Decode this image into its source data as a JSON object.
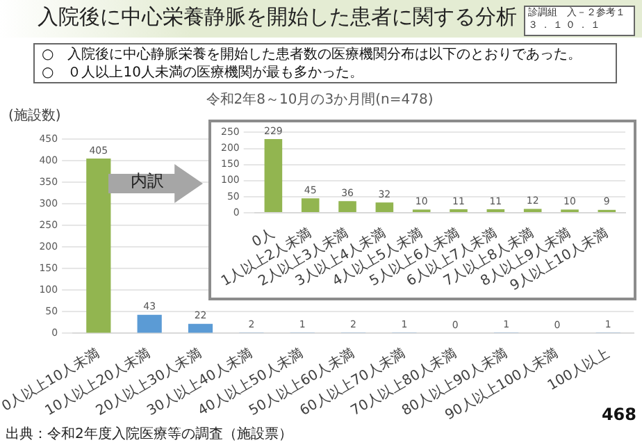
{
  "chart_data": [
    {
      "type": "bar",
      "title": "令和2年8～10月の3か月間(n=478)",
      "ylabel": "(施設数)",
      "categories": [
        "0人以上10人未満",
        "10人以上20人未満",
        "20人以上30人未満",
        "30人以上40人未満",
        "40人以上50人未満",
        "50人以上60人未満",
        "60人以上70人未満",
        "70人以上80人未満",
        "80人以上90人未満",
        "90人以上100人未満",
        "100人以上"
      ],
      "values": [
        405,
        43,
        22,
        2,
        1,
        2,
        1,
        0,
        1,
        0,
        1
      ],
      "colors": [
        "#92b550",
        "#5b9bd5",
        "#5b9bd5",
        "#5b9bd5",
        "#5b9bd5",
        "#5b9bd5",
        "#5b9bd5",
        "#5b9bd5",
        "#5b9bd5",
        "#5b9bd5",
        "#5b9bd5"
      ],
      "ylim": [
        0,
        450
      ],
      "yticks": [
        0,
        50,
        100,
        150,
        200,
        250,
        300,
        350,
        400,
        450
      ],
      "grid": "y",
      "data_labels": true,
      "annotations": [
        "入院後に中心栄養静脈を開始した患者に関する分析",
        "診調組　入－２参考１",
        "３．１０．１",
        "○　入院後に中心静脈栄養を開始した患者数の医療機関分布は以下のとおりであった。",
        "○　０人以上10人未満の医療機関が最も多かった。",
        "内訳",
        "出典：令和2年度入院医療等の調査（施設票）",
        "468"
      ]
    },
    {
      "type": "bar",
      "categories": [
        "0人",
        "1人以上2人未満",
        "2人以上3人未満",
        "3人以上4人未満",
        "4人以上5人未満",
        "5人以上6人未満",
        "6人以上7人未満",
        "7人以上8人未満",
        "8人以上9人未満",
        "9人以上10人未満"
      ],
      "values": [
        229,
        45,
        36,
        32,
        10,
        11,
        11,
        12,
        10,
        9
      ],
      "color": "#92b550",
      "ylim": [
        0,
        250
      ],
      "yticks": [
        0,
        50,
        100,
        150,
        200,
        250
      ],
      "grid": "y",
      "data_labels": true
    }
  ]
}
